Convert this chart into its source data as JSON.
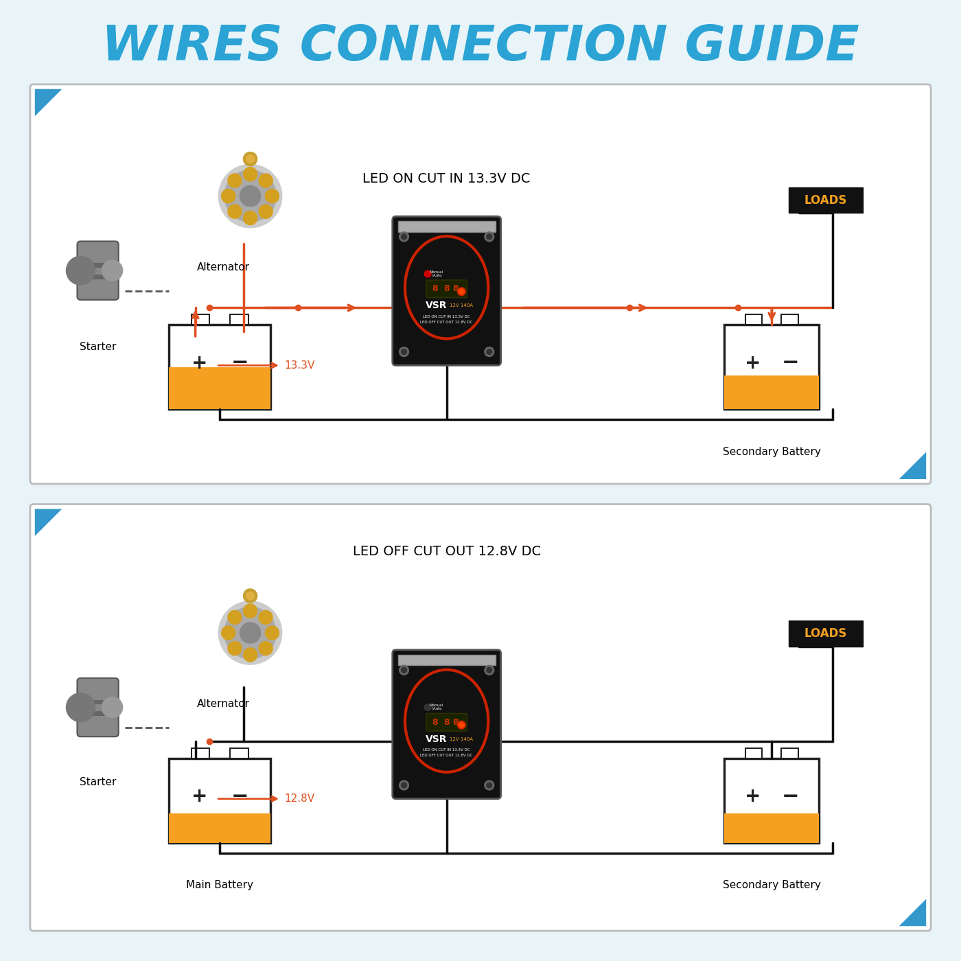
{
  "title": "WIRES CONNECTION GUIDE",
  "title_color": "#2ba3d4",
  "bg_color": "#e8f4f8",
  "panel_bg": "#ffffff",
  "panel_border": "#cccccc",
  "wire_color_main": "#e05020",
  "wire_color_black": "#111111",
  "wire_color_dashed": "#555555",
  "dot_color": "#e05020",
  "loads_bg": "#111111",
  "loads_text": "#f5a020",
  "battery_border": "#222222",
  "battery_fill": "#f5a020",
  "battery_white": "#ffffff",
  "plus_color": "#222222",
  "minus_color": "#222222",
  "vsr_bg": "#111111",
  "vsr_ring": "#cc2200",
  "vsr_display": "#223300",
  "panel1_title": "LED ON CUT IN 13.3V DC",
  "panel2_title": "LED OFF CUT OUT 12.8V DC",
  "voltage1": "13.3V",
  "voltage2": "12.8V",
  "label_alternator": "Alternator",
  "label_starter": "Starter",
  "label_main_battery": "Main Battery",
  "label_secondary": "Secondary Battery",
  "label_loads": "LOADS"
}
